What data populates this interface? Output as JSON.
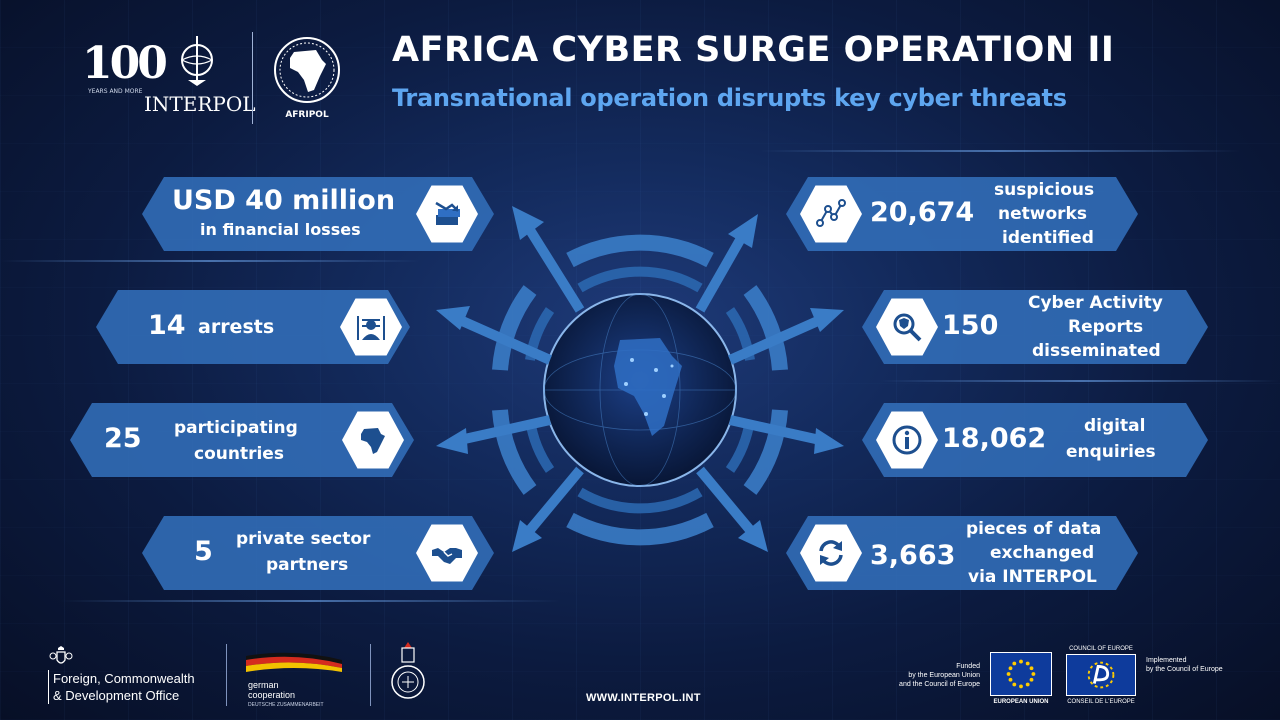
{
  "header": {
    "title": "AFRICA CYBER SURGE OPERATION II",
    "subtitle": "Transnational operation disrupts key cyber threats",
    "logo_100": "100",
    "logo_100_sub": "YEARS AND MORE",
    "interpol_name": "INTERPOL",
    "afripol_name": "AFRIPOL"
  },
  "stats": {
    "financial_losses": {
      "value": "USD 40 million",
      "label": "in financial losses",
      "icon": "money-stack-icon"
    },
    "arrests": {
      "value": "14",
      "label": "arrests",
      "icon": "arrested-person-icon"
    },
    "participating_countries": {
      "value": "25",
      "label_line1": "participating",
      "label_line2": "countries",
      "icon": "africa-map-icon"
    },
    "private_partners": {
      "value": "5",
      "label_line1": "private sector",
      "label_line2": "partners",
      "icon": "handshake-icon"
    },
    "suspicious_networks": {
      "value": "20,674",
      "label_line1": "suspicious",
      "label_line2": "networks",
      "label_line3": "identified",
      "icon": "network-nodes-icon"
    },
    "cyber_reports": {
      "value": "150",
      "label_line1": "Cyber Activity",
      "label_line2": "Reports",
      "label_line3": "disseminated",
      "icon": "magnifier-shield-icon"
    },
    "digital_enquiries": {
      "value": "18,062",
      "label_line1": "digital",
      "label_line2": "enquiries",
      "icon": "info-icon"
    },
    "data_exchanged": {
      "value": "3,663",
      "label_line1": "pieces of data",
      "label_line2": "exchanged",
      "label_line3": "via INTERPOL",
      "icon": "refresh-arrows-icon"
    }
  },
  "footer": {
    "fcdo_line1": "Foreign, Commonwealth",
    "fcdo_line2": "& Development Office",
    "gc_line1": "german",
    "gc_line2": "cooperation",
    "gc_line3": "DEUTSCHE ZUSAMMENARBEIT",
    "url": "WWW.INTERPOL.INT",
    "funded_line1": "Funded",
    "funded_line2": "by the European Union",
    "funded_line3": "and the Council of Europe",
    "eu_label": "EUROPEAN UNION",
    "coe_top": "COUNCIL OF EUROPE",
    "coe_label": "CONSEIL DE L'EUROPE",
    "implemented_line1": "Implemented",
    "implemented_line2": "by the Council of Europe"
  },
  "colors": {
    "box_blue": "#326eb9",
    "accent_blue": "#5ea6f0",
    "background": "#0c1b40"
  }
}
